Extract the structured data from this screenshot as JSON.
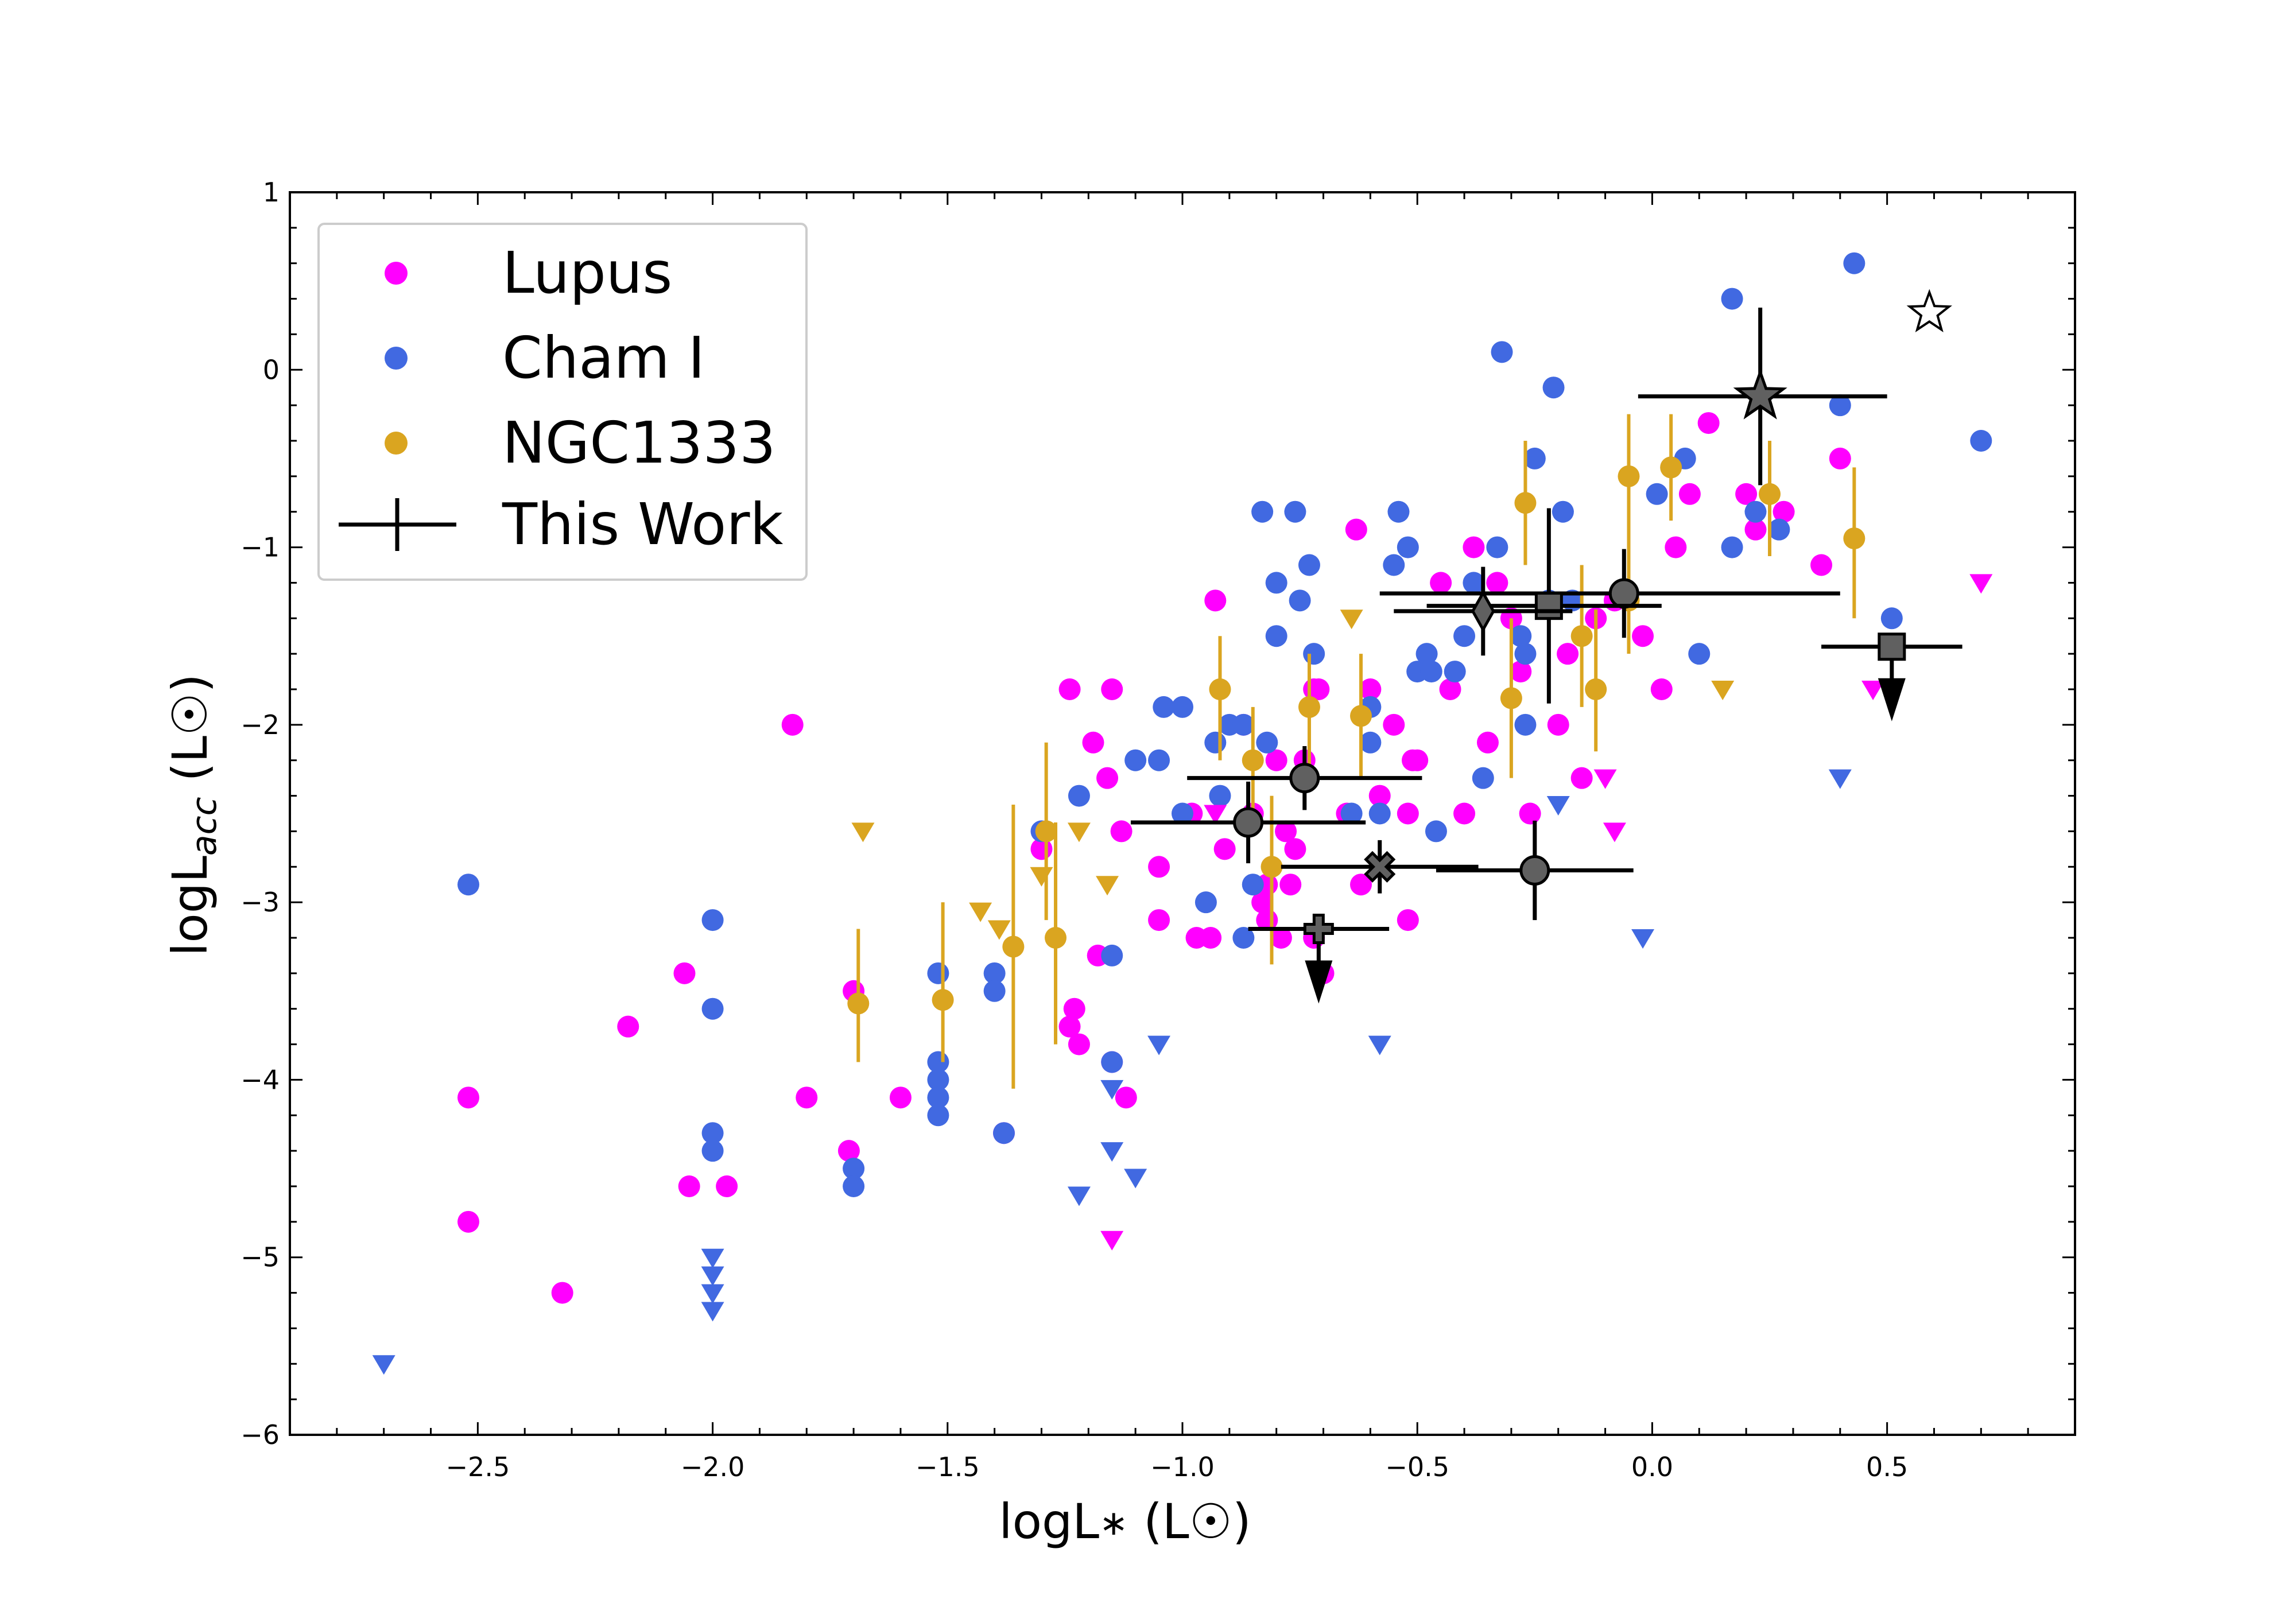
{
  "chart_data": {
    "type": "scatter",
    "title": "",
    "xlabel": "logL∗ (L☉)",
    "ylabel": "logL_acc (L☉)",
    "xlabel_parts": {
      "main": "logL",
      "sub": "∗",
      "unit": " (L☉)"
    },
    "ylabel_parts": {
      "main": "logL",
      "sub": "acc",
      "unit": " (L☉)"
    },
    "xlim": [
      -2.9,
      0.9
    ],
    "ylim": [
      -6,
      1
    ],
    "xticks": [
      -2.5,
      -2.0,
      -1.5,
      -1.0,
      -0.5,
      0.0,
      0.5
    ],
    "xtick_labels": [
      "−2.5",
      "−2.0",
      "−1.5",
      "−1.0",
      "−0.5",
      "0.0",
      "0.5"
    ],
    "yticks": [
      -6,
      -5,
      -4,
      -3,
      -2,
      -1,
      0,
      1
    ],
    "ytick_labels": [
      "−6",
      "−5",
      "−4",
      "−3",
      "−2",
      "−1",
      "0",
      "1"
    ],
    "grid": false,
    "legend": {
      "placement": "top-left",
      "entries": [
        "Lupus",
        "Cham I",
        "NGC1333",
        "This Work"
      ]
    },
    "colors": {
      "Lupus": "#ff00ff",
      "Cham I": "#4169e1",
      "NGC1333": "#daa520",
      "This Work": "#606060"
    },
    "series": [
      {
        "name": "Lupus",
        "marker": "circle",
        "points": [
          [
            -2.52,
            -4.1
          ],
          [
            -2.52,
            -4.8
          ],
          [
            -2.32,
            -5.2
          ],
          [
            -2.18,
            -3.7
          ],
          [
            -2.06,
            -3.4
          ],
          [
            -2.05,
            -4.6
          ],
          [
            -1.97,
            -4.6
          ],
          [
            -1.83,
            -2.0
          ],
          [
            -1.8,
            -4.1
          ],
          [
            -1.7,
            -3.5
          ],
          [
            -1.71,
            -4.4
          ],
          [
            -1.6,
            -4.1
          ],
          [
            -1.38,
            -4.3
          ],
          [
            -1.3,
            -2.7
          ],
          [
            -1.24,
            -1.8
          ],
          [
            -1.23,
            -3.6
          ],
          [
            -1.24,
            -3.7
          ],
          [
            -1.22,
            -3.8
          ],
          [
            -1.19,
            -2.1
          ],
          [
            -1.18,
            -3.3
          ],
          [
            -1.16,
            -2.3
          ],
          [
            -1.15,
            -1.8
          ],
          [
            -1.15,
            -3.9
          ],
          [
            -1.13,
            -2.6
          ],
          [
            -1.12,
            -4.1
          ],
          [
            -1.05,
            -2.8
          ],
          [
            -1.05,
            -3.1
          ],
          [
            -0.98,
            -2.5
          ],
          [
            -0.97,
            -3.2
          ],
          [
            -0.94,
            -3.2
          ],
          [
            -0.93,
            -1.3
          ],
          [
            -0.91,
            -2.7
          ],
          [
            -0.87,
            -2.0
          ],
          [
            -0.85,
            -2.5
          ],
          [
            -0.83,
            -3.0
          ],
          [
            -0.82,
            -3.1
          ],
          [
            -0.82,
            -2.9
          ],
          [
            -0.8,
            -2.2
          ],
          [
            -0.79,
            -3.2
          ],
          [
            -0.78,
            -2.6
          ],
          [
            -0.77,
            -2.9
          ],
          [
            -0.76,
            -2.7
          ],
          [
            -0.74,
            -2.2
          ],
          [
            -0.72,
            -1.8
          ],
          [
            -0.72,
            -3.2
          ],
          [
            -0.71,
            -1.8
          ],
          [
            -0.7,
            -3.4
          ],
          [
            -0.65,
            -2.5
          ],
          [
            -0.63,
            -0.9
          ],
          [
            -0.62,
            -2.9
          ],
          [
            -0.6,
            -1.8
          ],
          [
            -0.58,
            -2.4
          ],
          [
            -0.55,
            -2.0
          ],
          [
            -0.52,
            -2.5
          ],
          [
            -0.51,
            -2.2
          ],
          [
            -0.52,
            -3.1
          ],
          [
            -0.5,
            -2.2
          ],
          [
            -0.45,
            -1.2
          ],
          [
            -0.43,
            -1.8
          ],
          [
            -0.4,
            -2.5
          ],
          [
            -0.38,
            -1.0
          ],
          [
            -0.35,
            -2.1
          ],
          [
            -0.33,
            -1.2
          ],
          [
            -0.3,
            -1.4
          ],
          [
            -0.28,
            -1.7
          ],
          [
            -0.26,
            -2.5
          ],
          [
            -0.2,
            -2.0
          ],
          [
            -0.18,
            -1.6
          ],
          [
            -0.15,
            -2.3
          ],
          [
            -0.12,
            -1.4
          ],
          [
            -0.08,
            -1.3
          ],
          [
            -0.02,
            -1.5
          ],
          [
            0.02,
            -1.8
          ],
          [
            0.05,
            -1.0
          ],
          [
            0.08,
            -0.7
          ],
          [
            0.12,
            -0.3
          ],
          [
            0.2,
            -0.7
          ],
          [
            0.22,
            -0.9
          ],
          [
            0.28,
            -0.8
          ],
          [
            0.36,
            -1.1
          ],
          [
            0.4,
            -0.5
          ]
        ]
      },
      {
        "name": "Cham I",
        "marker": "circle",
        "points": [
          [
            -2.52,
            -2.9
          ],
          [
            -2.0,
            -3.1
          ],
          [
            -2.0,
            -3.6
          ],
          [
            -2.0,
            -4.3
          ],
          [
            -2.0,
            -4.4
          ],
          [
            -1.7,
            -4.5
          ],
          [
            -1.7,
            -4.6
          ],
          [
            -1.52,
            -3.4
          ],
          [
            -1.52,
            -3.9
          ],
          [
            -1.52,
            -4.0
          ],
          [
            -1.52,
            -4.1
          ],
          [
            -1.52,
            -4.2
          ],
          [
            -1.4,
            -3.4
          ],
          [
            -1.4,
            -3.5
          ],
          [
            -1.38,
            -4.3
          ],
          [
            -1.3,
            -2.6
          ],
          [
            -1.22,
            -2.4
          ],
          [
            -1.15,
            -3.3
          ],
          [
            -1.15,
            -3.9
          ],
          [
            -1.1,
            -2.2
          ],
          [
            -1.05,
            -2.2
          ],
          [
            -1.04,
            -1.9
          ],
          [
            -1.0,
            -1.9
          ],
          [
            -1.0,
            -2.5
          ],
          [
            -0.95,
            -3.0
          ],
          [
            -0.93,
            -2.1
          ],
          [
            -0.92,
            -2.4
          ],
          [
            -0.9,
            -2.0
          ],
          [
            -0.87,
            -2.0
          ],
          [
            -0.87,
            -3.2
          ],
          [
            -0.85,
            -2.9
          ],
          [
            -0.83,
            -0.8
          ],
          [
            -0.82,
            -2.1
          ],
          [
            -0.8,
            -1.5
          ],
          [
            -0.8,
            -1.2
          ],
          [
            -0.76,
            -0.8
          ],
          [
            -0.75,
            -1.3
          ],
          [
            -0.73,
            -1.1
          ],
          [
            -0.72,
            -1.6
          ],
          [
            -0.64,
            -2.5
          ],
          [
            -0.6,
            -2.1
          ],
          [
            -0.6,
            -1.9
          ],
          [
            -0.58,
            -2.5
          ],
          [
            -0.55,
            -1.1
          ],
          [
            -0.54,
            -0.8
          ],
          [
            -0.52,
            -1.0
          ],
          [
            -0.5,
            -1.7
          ],
          [
            -0.48,
            -1.6
          ],
          [
            -0.47,
            -1.7
          ],
          [
            -0.46,
            -2.6
          ],
          [
            -0.42,
            -1.7
          ],
          [
            -0.4,
            -1.5
          ],
          [
            -0.38,
            -1.2
          ],
          [
            -0.36,
            -2.3
          ],
          [
            -0.33,
            -1.0
          ],
          [
            -0.32,
            0.1
          ],
          [
            -0.28,
            -1.5
          ],
          [
            -0.27,
            -1.6
          ],
          [
            -0.25,
            -0.5
          ],
          [
            -0.22,
            -1.3
          ],
          [
            -0.21,
            -0.1
          ],
          [
            -0.19,
            -0.8
          ],
          [
            -0.17,
            -1.3
          ],
          [
            0.01,
            -0.7
          ],
          [
            0.07,
            -0.5
          ],
          [
            0.1,
            -1.6
          ],
          [
            0.17,
            0.4
          ],
          [
            0.17,
            -1.0
          ],
          [
            0.22,
            -0.8
          ],
          [
            0.27,
            -0.9
          ],
          [
            0.4,
            -0.2
          ],
          [
            0.43,
            0.6
          ],
          [
            0.51,
            -1.4
          ],
          [
            0.7,
            -0.4
          ],
          [
            -0.27,
            -2.0
          ]
        ]
      },
      {
        "name": "NGC1333",
        "marker": "circle",
        "points": [
          {
            "x": -1.69,
            "y": -3.57,
            "ylo": -3.9,
            "yhi": -3.15
          },
          {
            "x": -1.51,
            "y": -3.55,
            "ylo": -3.9,
            "yhi": -3.0
          },
          {
            "x": -1.36,
            "y": -3.25,
            "ylo": -4.05,
            "yhi": -2.45
          },
          {
            "x": -1.27,
            "y": -3.2,
            "ylo": -3.8,
            "yhi": -2.55
          },
          {
            "x": -1.29,
            "y": -2.6,
            "ylo": -3.1,
            "yhi": -2.1
          },
          {
            "x": -0.92,
            "y": -1.8,
            "ylo": -2.2,
            "yhi": -1.5
          },
          {
            "x": -0.85,
            "y": -2.2,
            "ylo": -2.6,
            "yhi": -1.9
          },
          {
            "x": -0.81,
            "y": -2.8,
            "ylo": -3.35,
            "yhi": -2.4
          },
          {
            "x": -0.73,
            "y": -1.9,
            "ylo": -2.3,
            "yhi": -1.6
          },
          {
            "x": -0.62,
            "y": -1.95,
            "ylo": -2.3,
            "yhi": -1.6
          },
          {
            "x": -0.3,
            "y": -1.85,
            "ylo": -2.3,
            "yhi": -1.4
          },
          {
            "x": -0.27,
            "y": -0.75,
            "ylo": -1.1,
            "yhi": -0.4
          },
          {
            "x": -0.15,
            "y": -1.5,
            "ylo": -1.9,
            "yhi": -1.1
          },
          {
            "x": -0.12,
            "y": -1.8,
            "ylo": -2.15,
            "yhi": -1.35
          },
          {
            "x": -0.05,
            "y": -0.6,
            "ylo": -0.95,
            "yhi": -0.25
          },
          {
            "x": -0.05,
            "y": -1.3,
            "ylo": -1.6,
            "yhi": -0.9
          },
          {
            "x": 0.04,
            "y": -0.55,
            "ylo": -0.85,
            "yhi": -0.25
          },
          {
            "x": 0.25,
            "y": -0.7,
            "ylo": -1.05,
            "yhi": -0.4
          },
          {
            "x": 0.43,
            "y": -0.95,
            "ylo": -1.4,
            "yhi": -0.55
          }
        ]
      },
      {
        "name": "Lupus upper limits",
        "marker": "triangle-down",
        "points": [
          [
            -1.15,
            -4.9
          ],
          [
            -0.93,
            -2.5
          ],
          [
            -0.1,
            -2.3
          ],
          [
            -0.08,
            -2.6
          ],
          [
            0.47,
            -1.8
          ],
          [
            0.7,
            -1.2
          ]
        ]
      },
      {
        "name": "Cham I upper limits",
        "marker": "triangle-down",
        "points": [
          [
            -2.7,
            -5.6
          ],
          [
            -2.0,
            -5.0
          ],
          [
            -2.0,
            -5.1
          ],
          [
            -2.0,
            -5.2
          ],
          [
            -2.0,
            -5.3
          ],
          [
            -1.22,
            -4.65
          ],
          [
            -1.15,
            -4.05
          ],
          [
            -1.15,
            -4.4
          ],
          [
            -1.1,
            -4.55
          ],
          [
            -1.05,
            -3.8
          ],
          [
            -0.58,
            -3.8
          ],
          [
            -0.2,
            -2.45
          ],
          [
            -0.02,
            -3.2
          ],
          [
            0.4,
            -2.3
          ]
        ]
      },
      {
        "name": "NGC1333 upper limits",
        "marker": "triangle-down",
        "points": [
          [
            -1.68,
            -2.6
          ],
          [
            -1.43,
            -3.05
          ],
          [
            -1.39,
            -3.15
          ],
          [
            -1.3,
            -2.85
          ],
          [
            -1.22,
            -2.6
          ],
          [
            -1.16,
            -2.9
          ],
          [
            -0.64,
            -1.4
          ],
          [
            0.15,
            -1.8
          ]
        ]
      },
      {
        "name": "This Work",
        "marker": "mixed",
        "points": [
          {
            "x": 0.23,
            "y": -0.15,
            "xlo": -0.03,
            "xhi": 0.5,
            "ylo": -0.65,
            "yhi": 0.35,
            "marker": "star"
          },
          {
            "x": -0.06,
            "y": -1.26,
            "xlo": -0.58,
            "xhi": 0.4,
            "ylo": -1.51,
            "yhi": -1.01,
            "marker": "circle"
          },
          {
            "x": -0.22,
            "y": -1.33,
            "xlo": -0.48,
            "xhi": 0.02,
            "ylo": -1.88,
            "yhi": -0.78,
            "marker": "square"
          },
          {
            "x": -0.36,
            "y": -1.36,
            "xlo": -0.55,
            "xhi": -0.17,
            "ylo": -1.61,
            "yhi": -1.11,
            "marker": "diamond"
          },
          {
            "x": 0.51,
            "y": -1.56,
            "xlo": 0.36,
            "xhi": 0.66,
            "limit": "upper",
            "marker": "square"
          },
          {
            "x": -0.74,
            "y": -2.3,
            "xlo": -0.99,
            "xhi": -0.49,
            "ylo": -2.48,
            "yhi": -2.12,
            "marker": "circle"
          },
          {
            "x": -0.86,
            "y": -2.55,
            "xlo": -1.11,
            "xhi": -0.61,
            "ylo": -2.78,
            "yhi": -2.32,
            "marker": "circle"
          },
          {
            "x": -0.58,
            "y": -2.8,
            "xlo": -0.79,
            "xhi": -0.37,
            "ylo": -2.95,
            "yhi": -2.65,
            "marker": "x-filled"
          },
          {
            "x": -0.25,
            "y": -2.82,
            "xlo": -0.46,
            "xhi": -0.04,
            "ylo": -3.1,
            "yhi": -2.54,
            "marker": "circle"
          },
          {
            "x": -0.71,
            "y": -3.15,
            "xlo": -0.86,
            "xhi": -0.56,
            "limit": "upper",
            "marker": "plus-filled"
          }
        ]
      },
      {
        "name": "open star",
        "marker": "star-open",
        "points": [
          [
            0.59,
            0.32
          ]
        ]
      }
    ]
  }
}
